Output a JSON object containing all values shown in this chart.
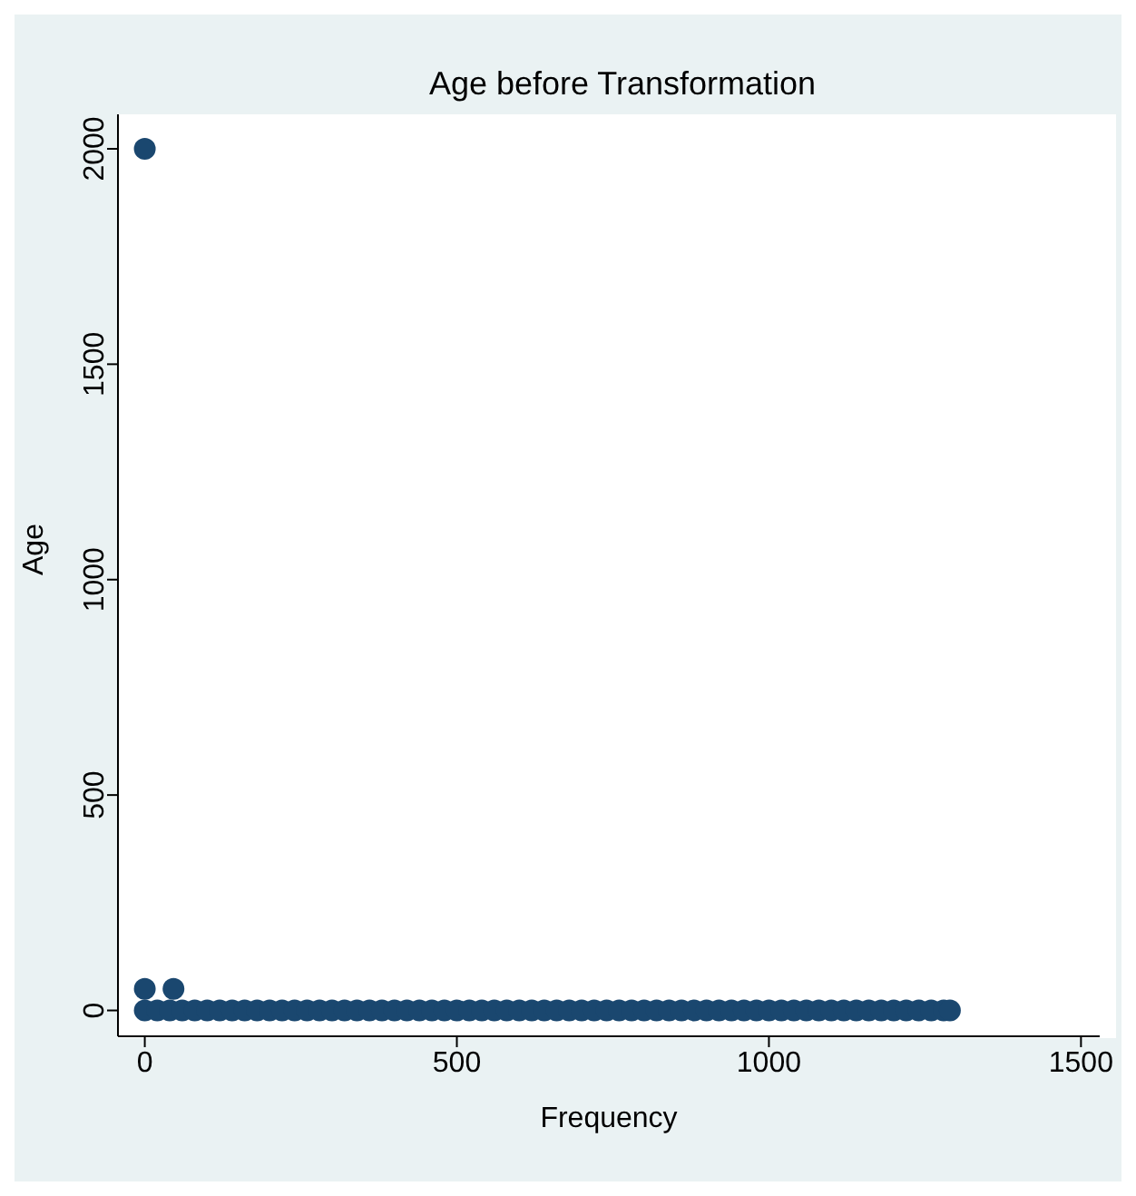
{
  "chart_data": {
    "type": "scatter",
    "title": "Age before Transformation",
    "xlabel": "Frequency",
    "ylabel": "Age",
    "series": [
      {
        "color": "#1a476f",
        "x": [
          0,
          20,
          40,
          60,
          80,
          100,
          120,
          140,
          160,
          180,
          200,
          220,
          240,
          260,
          280,
          300,
          320,
          340,
          360,
          380,
          400,
          420,
          440,
          460,
          480,
          500,
          520,
          540,
          560,
          580,
          600,
          620,
          640,
          660,
          680,
          700,
          720,
          740,
          760,
          780,
          800,
          820,
          840,
          860,
          880,
          900,
          920,
          940,
          960,
          980,
          1000,
          1020,
          1040,
          1060,
          1080,
          1100,
          1120,
          1140,
          1160,
          1180,
          1200,
          1220,
          1240,
          1260,
          1280,
          1290,
          0,
          46,
          0
        ],
        "values": [
          0,
          0,
          0,
          0,
          0,
          0,
          0,
          0,
          0,
          0,
          0,
          0,
          0,
          0,
          0,
          0,
          0,
          0,
          0,
          0,
          0,
          0,
          0,
          0,
          0,
          0,
          0,
          0,
          0,
          0,
          0,
          0,
          0,
          0,
          0,
          0,
          0,
          0,
          0,
          0,
          0,
          0,
          0,
          0,
          0,
          0,
          0,
          0,
          0,
          0,
          0,
          0,
          0,
          0,
          0,
          0,
          0,
          0,
          0,
          0,
          0,
          0,
          0,
          0,
          0,
          0,
          50,
          50,
          2000
        ]
      }
    ],
    "xlim": [
      -43,
      1530
    ],
    "xticks": [
      0,
      500,
      1000,
      1500
    ],
    "ylim": [
      -60,
      2080
    ],
    "yticks": [
      0,
      500,
      1000,
      1500,
      2000
    ],
    "marker": "circle",
    "grid": false,
    "legend": false
  }
}
